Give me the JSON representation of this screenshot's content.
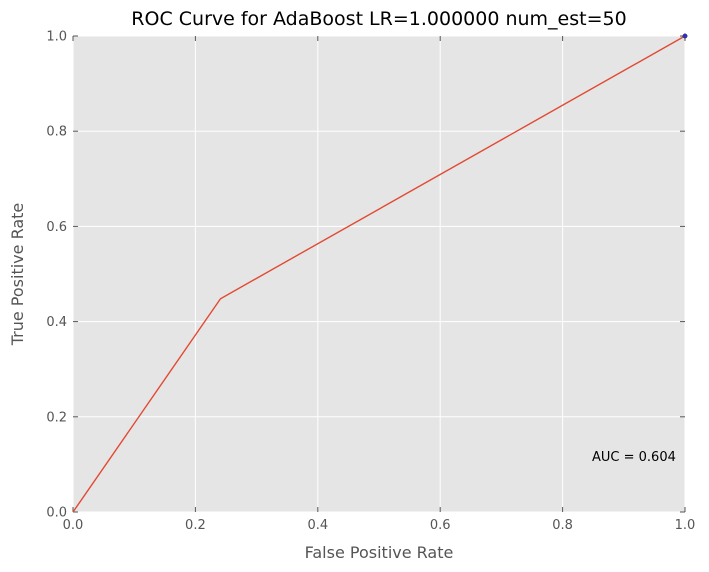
{
  "chart_data": {
    "type": "line",
    "title": "ROC Curve for AdaBoost LR=1.000000 num_est=50",
    "xlabel": "False Positive Rate",
    "ylabel": "True Positive Rate",
    "xlim": [
      0.0,
      1.0
    ],
    "ylim": [
      0.0,
      1.0
    ],
    "xticks": [
      "0.0",
      "0.2",
      "0.4",
      "0.6",
      "0.8",
      "1.0"
    ],
    "yticks": [
      "0.0",
      "0.2",
      "0.4",
      "0.6",
      "0.8",
      "1.0"
    ],
    "grid": true,
    "series": [
      {
        "color": "#E24A33",
        "x": [
          0.0,
          0.241,
          1.0
        ],
        "y": [
          0.0,
          0.448,
          1.0
        ]
      }
    ],
    "markers": [
      {
        "x": 1.0,
        "y": 1.0,
        "color": "#3030cc"
      }
    ],
    "annotation": {
      "text": "AUC = 0.604",
      "x": 0.84,
      "y": 0.11
    },
    "colors": {
      "plot_background": "#E5E5E5",
      "grid": "#ffffff",
      "line": "#E24A33",
      "text": "#555555"
    }
  }
}
